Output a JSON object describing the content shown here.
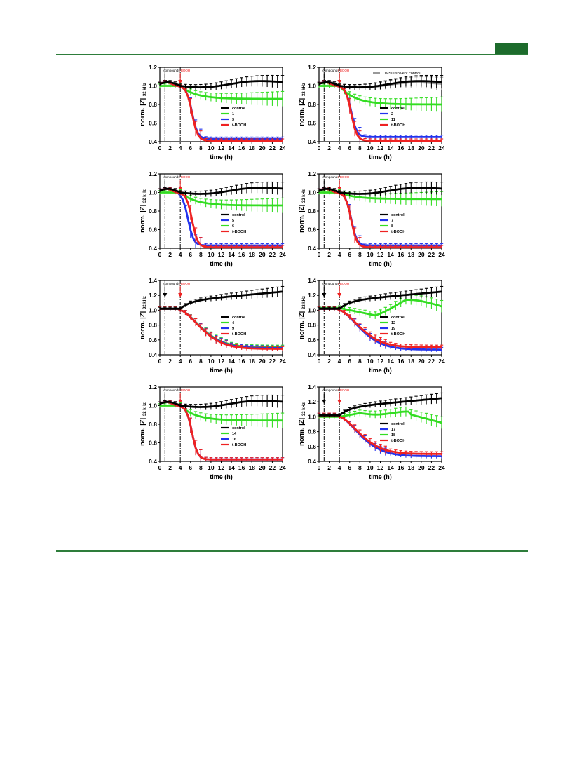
{
  "colors": {
    "accent": "#1d6b2c",
    "control": "#000000",
    "green": "#33dd22",
    "blue": "#2233ee",
    "red": "#ee2222"
  },
  "panel_text": {
    "y_label_main": "norm. |Z|",
    "y_label_sub": "32 kHz",
    "x_label": "time (h)",
    "compounds_label": "compounds",
    "tbooh_label": "t-BOOH"
  },
  "chart_data": [
    {
      "type": "line",
      "ylim": [
        0.4,
        1.2
      ],
      "xlim": [
        0,
        24
      ],
      "x_ticks": [
        "0",
        "2",
        "4",
        "6",
        "8",
        "10",
        "12",
        "14",
        "16",
        "18",
        "20",
        "22",
        "24"
      ],
      "y_ticks": [
        "0.4",
        "0.6",
        "0.8",
        "1.0",
        "1.2"
      ],
      "xlabel": "time (h)",
      "ylabel": "norm. |Z| 32 kHz",
      "legend_position": "center-right",
      "annotations": [
        "compounds",
        "t-BOOH"
      ],
      "series": [
        {
          "name": "control",
          "color": "#000000",
          "kind": "control_flat",
          "end": 1.05
        },
        {
          "name": "1",
          "color": "#33dd22",
          "kind": "partial",
          "end": 0.86
        },
        {
          "name": "3",
          "color": "#2233ee",
          "kind": "drop",
          "end": 0.43
        },
        {
          "name": "t-BOOH",
          "color": "#ee2222",
          "kind": "drop",
          "end": 0.41
        }
      ]
    },
    {
      "type": "line",
      "ylim": [
        0.4,
        1.2
      ],
      "xlim": [
        0,
        24
      ],
      "x_ticks": [
        "0",
        "2",
        "4",
        "6",
        "8",
        "10",
        "12",
        "14",
        "16",
        "18",
        "20",
        "22",
        "24"
      ],
      "y_ticks": [
        "0.4",
        "0.6",
        "0.8",
        "1.0",
        "1.2"
      ],
      "xlabel": "time (h)",
      "ylabel": "norm. |Z| 32 kHz",
      "legend_position": "center-right",
      "annotations": [
        "compounds",
        "t-BOOH"
      ],
      "extra_legend": "DMSO solvent control",
      "series": [
        {
          "name": "DMSO solvent control",
          "color": "#999999",
          "kind": "control_flat",
          "end": 1.03,
          "in_main_legend": false
        },
        {
          "name": "control",
          "color": "#000000",
          "kind": "control_flat",
          "end": 1.05
        },
        {
          "name": "2",
          "color": "#2233ee",
          "kind": "drop",
          "end": 0.45
        },
        {
          "name": "11",
          "color": "#33dd22",
          "kind": "partial",
          "end": 0.8
        },
        {
          "name": "t-BOOH",
          "color": "#ee2222",
          "kind": "drop",
          "end": 0.41
        }
      ]
    },
    {
      "type": "line",
      "ylim": [
        0.4,
        1.2
      ],
      "xlim": [
        0,
        24
      ],
      "x_ticks": [
        "0",
        "2",
        "4",
        "6",
        "8",
        "10",
        "12",
        "14",
        "16",
        "18",
        "20",
        "22",
        "24"
      ],
      "y_ticks": [
        "0.4",
        "0.6",
        "0.8",
        "1.0",
        "1.2"
      ],
      "xlabel": "time (h)",
      "ylabel": "norm. |Z| 32 kHz",
      "legend_position": "center-right",
      "annotations": [
        "compounds",
        "t-BOOH"
      ],
      "series": [
        {
          "name": "control",
          "color": "#000000",
          "kind": "control_flat",
          "end": 1.05
        },
        {
          "name": "5",
          "color": "#2233ee",
          "kind": "drop",
          "end": 0.43,
          "shift": -0.8
        },
        {
          "name": "6",
          "color": "#33dd22",
          "kind": "partial",
          "end": 0.86
        },
        {
          "name": "t-BOOH",
          "color": "#ee2222",
          "kind": "drop",
          "end": 0.41
        }
      ]
    },
    {
      "type": "line",
      "ylim": [
        0.4,
        1.2
      ],
      "xlim": [
        0,
        24
      ],
      "x_ticks": [
        "0",
        "2",
        "4",
        "6",
        "8",
        "10",
        "12",
        "14",
        "16",
        "18",
        "20",
        "22",
        "24"
      ],
      "y_ticks": [
        "0.4",
        "0.6",
        "0.8",
        "1.0",
        "1.2"
      ],
      "xlabel": "time (h)",
      "ylabel": "norm. |Z| 32 kHz",
      "legend_position": "center-right",
      "annotations": [
        "compounds",
        "t-BOOH"
      ],
      "series": [
        {
          "name": "control",
          "color": "#000000",
          "kind": "control_flat",
          "end": 1.05
        },
        {
          "name": "7",
          "color": "#2233ee",
          "kind": "drop",
          "end": 0.43
        },
        {
          "name": "8",
          "color": "#33dd22",
          "kind": "partial",
          "end": 0.93
        },
        {
          "name": "t-BOOH",
          "color": "#ee2222",
          "kind": "drop",
          "end": 0.41
        }
      ]
    },
    {
      "type": "line",
      "ylim": [
        0.4,
        1.4
      ],
      "xlim": [
        0,
        24
      ],
      "x_ticks": [
        "0",
        "2",
        "4",
        "6",
        "8",
        "10",
        "12",
        "14",
        "16",
        "18",
        "20",
        "22",
        "24"
      ],
      "y_ticks": [
        "0.4",
        "0.6",
        "0.8",
        "1.0",
        "1.2",
        "1.4"
      ],
      "xlabel": "time (h)",
      "ylabel": "norm. |Z| 32 kHz",
      "legend_position": "center-right",
      "annotations": [
        "compounds",
        "t-BOOH"
      ],
      "series": [
        {
          "name": "control",
          "color": "#000000",
          "kind": "control_rise",
          "end": 1.25
        },
        {
          "name": "4",
          "color": "#33dd22",
          "kind": "slow",
          "end": 0.5
        },
        {
          "name": "9",
          "color": "#2233ee",
          "kind": "slow",
          "end": 0.49
        },
        {
          "name": "t-BOOH",
          "color": "#ee2222",
          "kind": "slow",
          "end": 0.48
        }
      ]
    },
    {
      "type": "line",
      "ylim": [
        0.4,
        1.4
      ],
      "xlim": [
        0,
        24
      ],
      "x_ticks": [
        "0",
        "2",
        "4",
        "6",
        "8",
        "10",
        "12",
        "14",
        "16",
        "18",
        "20",
        "22",
        "24"
      ],
      "y_ticks": [
        "0.4",
        "0.6",
        "0.8",
        "1.0",
        "1.2",
        "1.4"
      ],
      "xlabel": "time (h)",
      "ylabel": "norm. |Z| 32 kHz",
      "legend_position": "center-right",
      "annotations": [
        "compounds",
        "t-BOOH"
      ],
      "series": [
        {
          "name": "control",
          "color": "#000000",
          "kind": "control_rise",
          "end": 1.25
        },
        {
          "name": "12",
          "color": "#33dd22",
          "kind": "dip_recover",
          "end": 1.06
        },
        {
          "name": "19",
          "color": "#2233ee",
          "kind": "slow",
          "end": 0.47
        },
        {
          "name": "t-BOOH",
          "color": "#ee2222",
          "kind": "slow",
          "end": 0.5
        }
      ]
    },
    {
      "type": "line",
      "ylim": [
        0.4,
        1.2
      ],
      "xlim": [
        0,
        24
      ],
      "x_ticks": [
        "0",
        "2",
        "4",
        "6",
        "8",
        "10",
        "12",
        "14",
        "16",
        "18",
        "20",
        "22",
        "24"
      ],
      "y_ticks": [
        "0.4",
        "0.6",
        "0.8",
        "1.0",
        "1.2"
      ],
      "xlabel": "time (h)",
      "ylabel": "norm. |Z| 32 kHz",
      "legend_position": "center-right",
      "annotations": [
        "compounds",
        "t-BOOH"
      ],
      "series": [
        {
          "name": "control",
          "color": "#000000",
          "kind": "control_flat",
          "end": 1.05
        },
        {
          "name": "14",
          "color": "#33dd22",
          "kind": "partial",
          "end": 0.84
        },
        {
          "name": "16",
          "color": "#2233ee",
          "kind": "drop",
          "end": 0.42
        },
        {
          "name": "t-BOOH",
          "color": "#ee2222",
          "kind": "drop",
          "end": 0.42
        }
      ]
    },
    {
      "type": "line",
      "ylim": [
        0.4,
        1.4
      ],
      "xlim": [
        0,
        24
      ],
      "x_ticks": [
        "0",
        "2",
        "4",
        "6",
        "8",
        "10",
        "12",
        "14",
        "16",
        "18",
        "20",
        "22",
        "24"
      ],
      "y_ticks": [
        "0.4",
        "0.6",
        "0.8",
        "1.0",
        "1.2",
        "1.4"
      ],
      "xlabel": "time (h)",
      "ylabel": "norm. |Z| 32 kHz",
      "legend_position": "center-right",
      "annotations": [
        "compounds",
        "t-BOOH"
      ],
      "series": [
        {
          "name": "control",
          "color": "#000000",
          "kind": "control_rise",
          "end": 1.25
        },
        {
          "name": "17",
          "color": "#2233ee",
          "kind": "slow",
          "end": 0.47
        },
        {
          "name": "18",
          "color": "#33dd22",
          "kind": "plateau",
          "end": 0.92
        },
        {
          "name": "t-BOOH",
          "color": "#ee2222",
          "kind": "slow",
          "end": 0.5
        }
      ]
    }
  ]
}
